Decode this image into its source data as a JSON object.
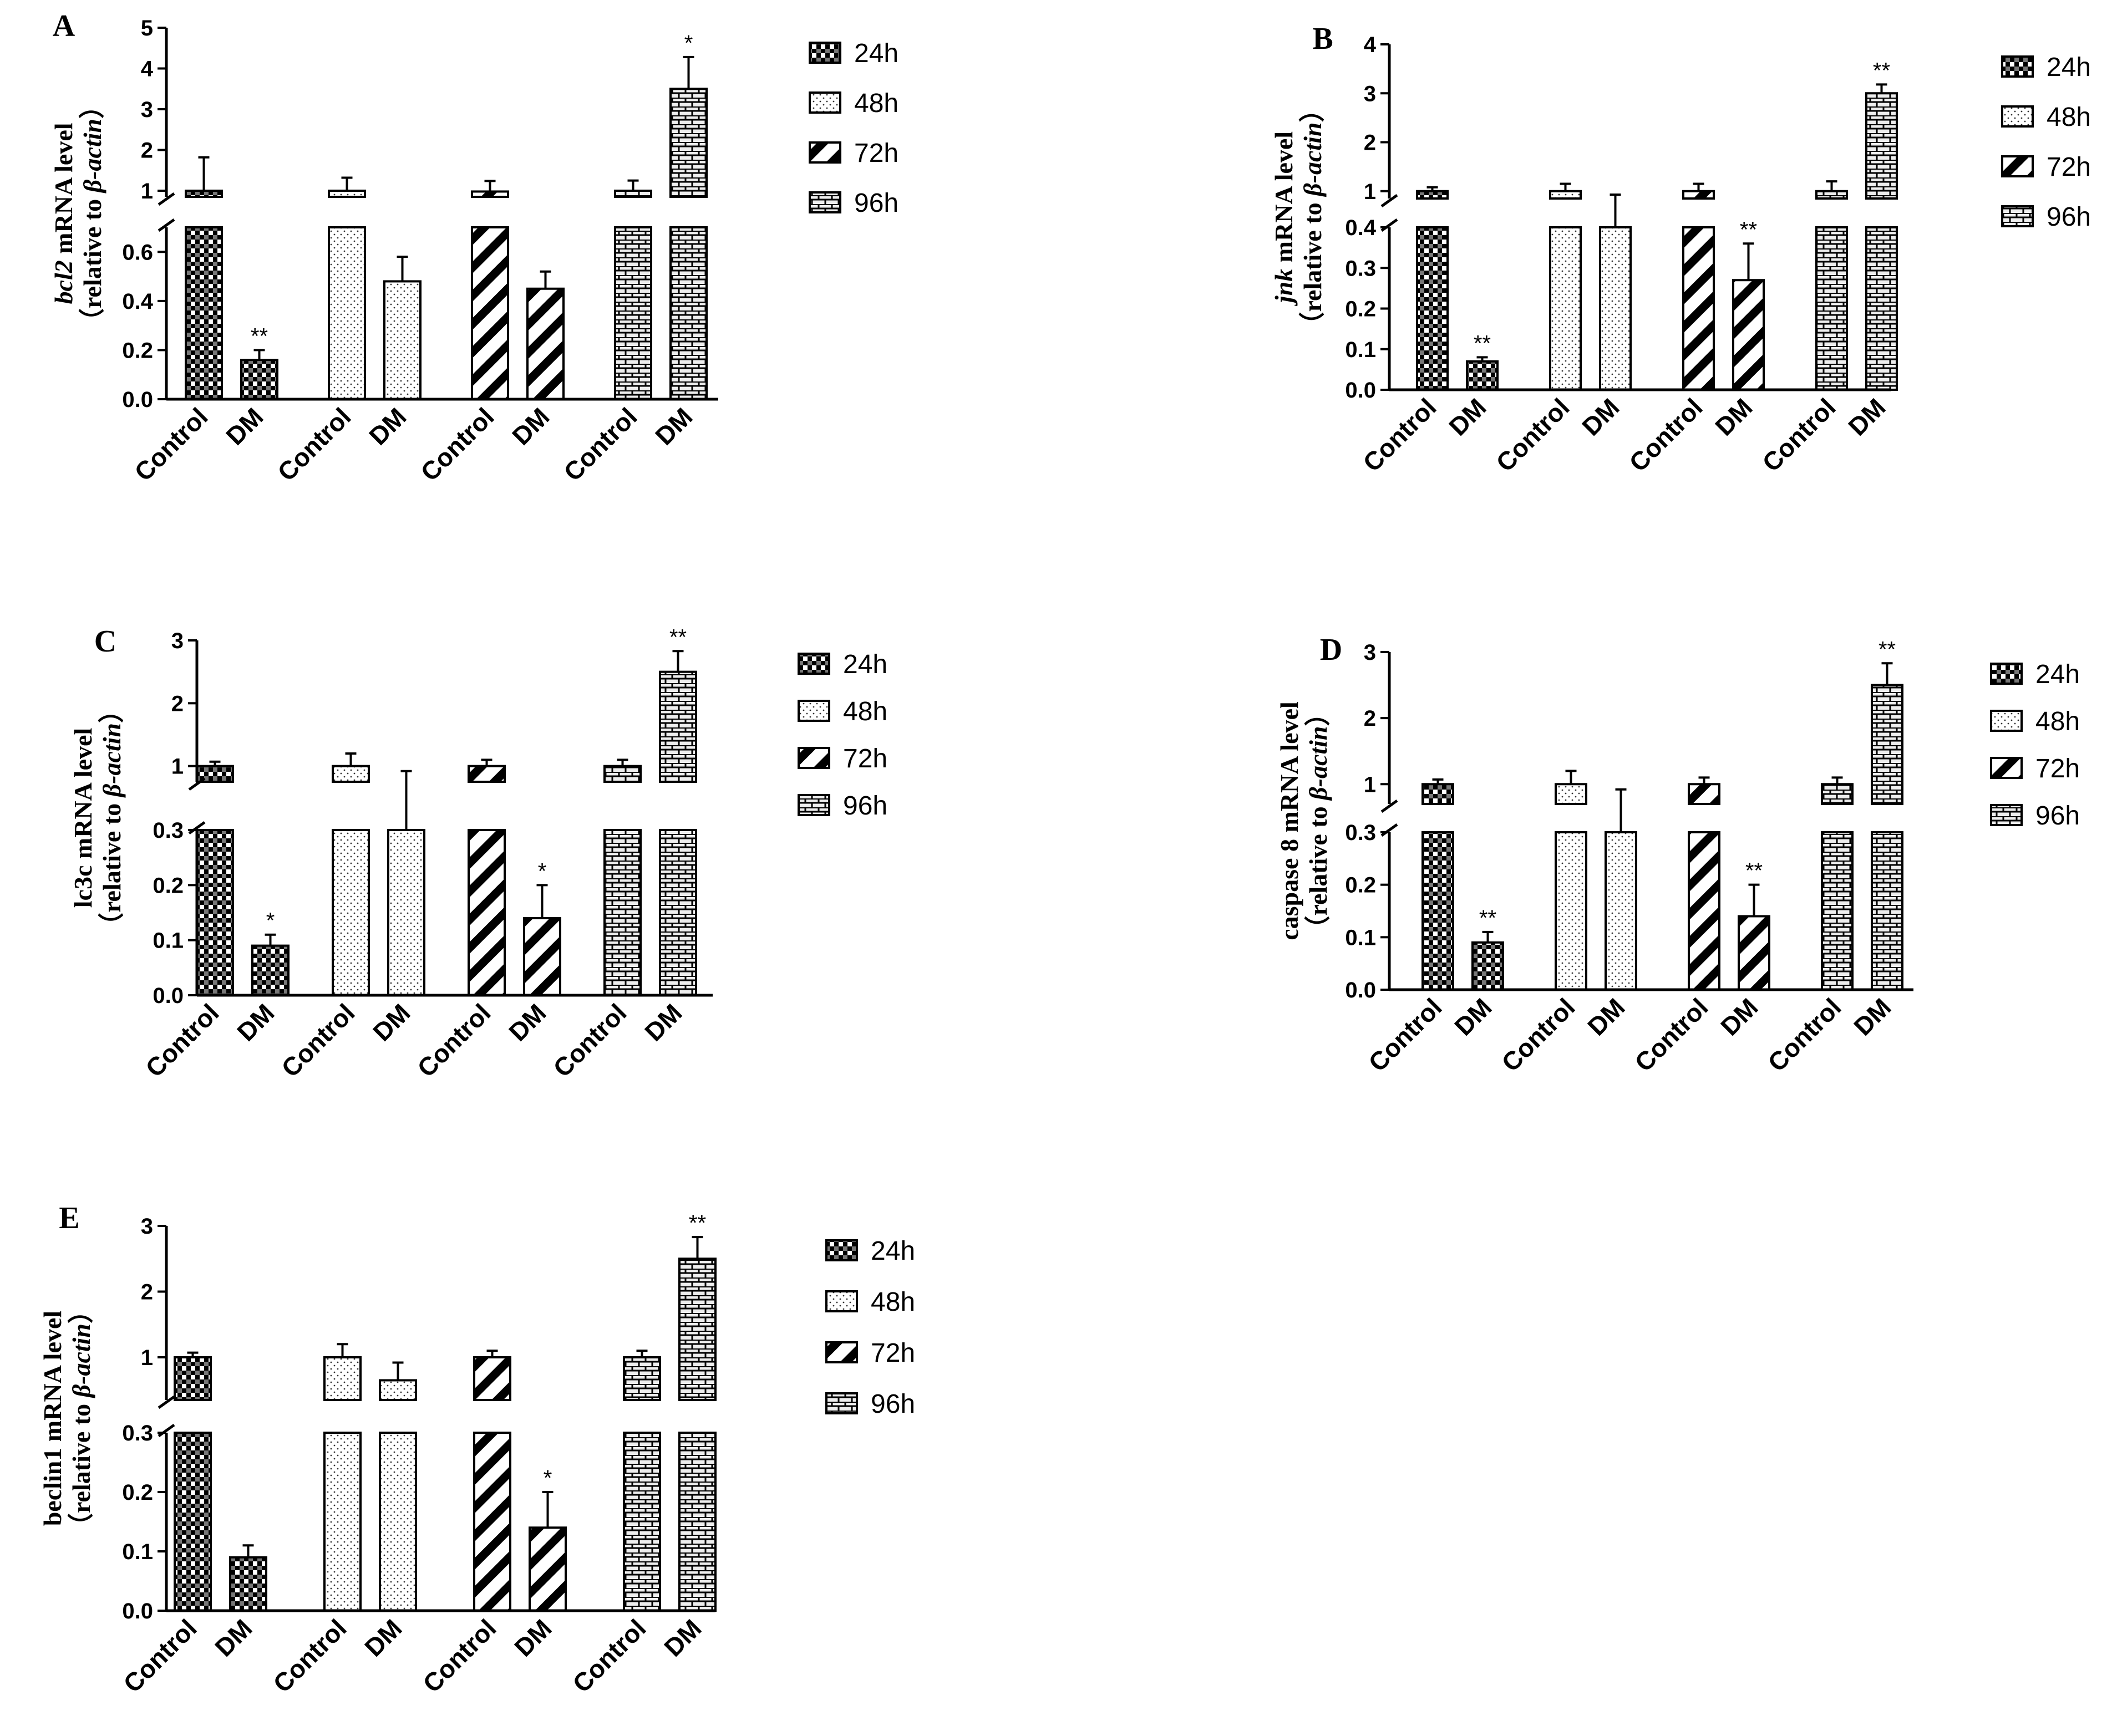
{
  "legend": {
    "24h": "24h",
    "48h": "48h",
    "72h": "72h",
    "96h": "96h"
  },
  "chart_data": [
    {
      "type": "bar",
      "id": "A",
      "panel_label": "A",
      "ylabel_main": "bcl2",
      "ylabel_main_italic": true,
      "ylabel_main_rest": " mRNA level",
      "ylabel_sub_pre": "（relative to ",
      "ylabel_sub_italic": "β-actin",
      "ylabel_sub_post": "）",
      "lower_ylim": [
        0,
        0.7
      ],
      "upper_ylim": [
        0.85,
        5
      ],
      "lower_ticks": [
        "0.0",
        "0.2",
        "0.4",
        "0.6"
      ],
      "lower_tick_values": [
        0,
        0.2,
        0.4,
        0.6
      ],
      "upper_ticks": [
        "1",
        "2",
        "3",
        "4",
        "5"
      ],
      "upper_tick_values": [
        1,
        2,
        3,
        4,
        5
      ],
      "groups": [
        "24h",
        "48h",
        "72h",
        "96h"
      ],
      "categories": [
        "Control",
        "DM"
      ],
      "values": [
        [
          1.0,
          0.16
        ],
        [
          1.0,
          0.48
        ],
        [
          0.98,
          0.45
        ],
        [
          1.0,
          3.5
        ]
      ],
      "errors": [
        [
          0.82,
          0.04
        ],
        [
          0.32,
          0.1
        ],
        [
          0.26,
          0.07
        ],
        [
          0.25,
          0.78
        ]
      ],
      "significance": [
        [
          "",
          "**"
        ],
        [
          "",
          ""
        ],
        [
          "",
          ""
        ],
        [
          "",
          "*"
        ]
      ]
    },
    {
      "type": "bar",
      "id": "B",
      "panel_label": "B",
      "ylabel_main": "jnk",
      "ylabel_main_italic": true,
      "ylabel_main_rest": " mRNA level",
      "ylabel_sub_pre": "（relative to ",
      "ylabel_sub_italic": "β-actin",
      "ylabel_sub_post": "）",
      "lower_ylim": [
        0,
        0.4
      ],
      "upper_ylim": [
        0.85,
        4
      ],
      "lower_ticks": [
        "0.0",
        "0.1",
        "0.2",
        "0.3",
        "0.4"
      ],
      "lower_tick_values": [
        0,
        0.1,
        0.2,
        0.3,
        0.4
      ],
      "upper_ticks": [
        "1",
        "2",
        "3",
        "4"
      ],
      "upper_tick_values": [
        1,
        2,
        3,
        4
      ],
      "groups": [
        "24h",
        "48h",
        "72h",
        "96h"
      ],
      "categories": [
        "Control",
        "DM"
      ],
      "values": [
        [
          1.0,
          0.07
        ],
        [
          1.0,
          0.8
        ],
        [
          1.0,
          0.27
        ],
        [
          1.0,
          3.0
        ]
      ],
      "errors": [
        [
          0.08,
          0.01
        ],
        [
          0.15,
          0.13
        ],
        [
          0.15,
          0.09
        ],
        [
          0.2,
          0.18
        ]
      ],
      "significance": [
        [
          "",
          "**"
        ],
        [
          "",
          ""
        ],
        [
          "",
          "**"
        ],
        [
          "",
          "**"
        ]
      ]
    },
    {
      "type": "bar",
      "id": "C",
      "panel_label": "C",
      "ylabel_main": "lc3c",
      "ylabel_main_italic": false,
      "ylabel_main_rest": " mRNA level",
      "ylabel_sub_pre": "（relative to ",
      "ylabel_sub_italic": "β-actin",
      "ylabel_sub_post": "）",
      "lower_ylim": [
        0,
        0.3
      ],
      "upper_ylim": [
        0.75,
        3
      ],
      "lower_ticks": [
        "0.0",
        "0.1",
        "0.2",
        "0.3"
      ],
      "lower_tick_values": [
        0,
        0.1,
        0.2,
        0.3
      ],
      "upper_ticks": [
        "1",
        "2",
        "3"
      ],
      "upper_tick_values": [
        1,
        2,
        3
      ],
      "groups": [
        "24h",
        "48h",
        "72h",
        "96h"
      ],
      "categories": [
        "Control",
        "DM"
      ],
      "values": [
        [
          1.0,
          0.09
        ],
        [
          1.0,
          0.65
        ],
        [
          1.0,
          0.14
        ],
        [
          1.0,
          2.5
        ]
      ],
      "errors": [
        [
          0.07,
          0.02
        ],
        [
          0.2,
          0.27
        ],
        [
          0.1,
          0.06
        ],
        [
          0.1,
          0.33
        ]
      ],
      "significance": [
        [
          "",
          "*"
        ],
        [
          "",
          ""
        ],
        [
          "",
          "*"
        ],
        [
          "",
          "**"
        ]
      ]
    },
    {
      "type": "bar",
      "id": "D",
      "panel_label": "D",
      "ylabel_main": "caspase 8",
      "ylabel_main_italic": false,
      "ylabel_main_rest": " mRNA level",
      "ylabel_sub_pre": "（relative to ",
      "ylabel_sub_italic": "β-actin",
      "ylabel_sub_post": "）",
      "lower_ylim": [
        0,
        0.3
      ],
      "upper_ylim": [
        0.7,
        3
      ],
      "lower_ticks": [
        "0.0",
        "0.1",
        "0.2",
        "0.3"
      ],
      "lower_tick_values": [
        0,
        0.1,
        0.2,
        0.3
      ],
      "upper_ticks": [
        "1",
        "2",
        "3"
      ],
      "upper_tick_values": [
        1,
        2,
        3
      ],
      "groups": [
        "24h",
        "48h",
        "72h",
        "96h"
      ],
      "categories": [
        "Control",
        "DM"
      ],
      "values": [
        [
          1.0,
          0.09
        ],
        [
          1.0,
          0.65
        ],
        [
          1.0,
          0.14
        ],
        [
          1.0,
          2.5
        ]
      ],
      "errors": [
        [
          0.07,
          0.02
        ],
        [
          0.2,
          0.27
        ],
        [
          0.1,
          0.06
        ],
        [
          0.1,
          0.33
        ]
      ],
      "significance": [
        [
          "",
          "**"
        ],
        [
          "",
          ""
        ],
        [
          "",
          "**"
        ],
        [
          "",
          "**"
        ]
      ]
    },
    {
      "type": "bar",
      "id": "E",
      "panel_label": "E",
      "ylabel_main": "beclin1",
      "ylabel_main_italic": false,
      "ylabel_main_rest": " mRNA level",
      "ylabel_sub_pre": "（relative to ",
      "ylabel_sub_italic": "β-actin",
      "ylabel_sub_post": "）",
      "lower_ylim": [
        0,
        0.3
      ],
      "upper_ylim": [
        0.35,
        3
      ],
      "lower_ticks": [
        "0.0",
        "0.1",
        "0.2",
        "0.3"
      ],
      "lower_tick_values": [
        0,
        0.1,
        0.2,
        0.3
      ],
      "upper_ticks": [
        "1",
        "2",
        "3"
      ],
      "upper_tick_values": [
        1,
        2,
        3
      ],
      "groups": [
        "24h",
        "48h",
        "72h",
        "96h"
      ],
      "categories": [
        "Control",
        "DM"
      ],
      "values": [
        [
          1.0,
          0.09
        ],
        [
          1.0,
          0.65
        ],
        [
          1.0,
          0.14
        ],
        [
          1.0,
          2.5
        ]
      ],
      "errors": [
        [
          0.07,
          0.02
        ],
        [
          0.2,
          0.27
        ],
        [
          0.1,
          0.06
        ],
        [
          0.1,
          0.33
        ]
      ],
      "significance": [
        [
          "",
          ""
        ],
        [
          "",
          ""
        ],
        [
          "",
          "*"
        ],
        [
          "",
          "**"
        ]
      ]
    }
  ]
}
